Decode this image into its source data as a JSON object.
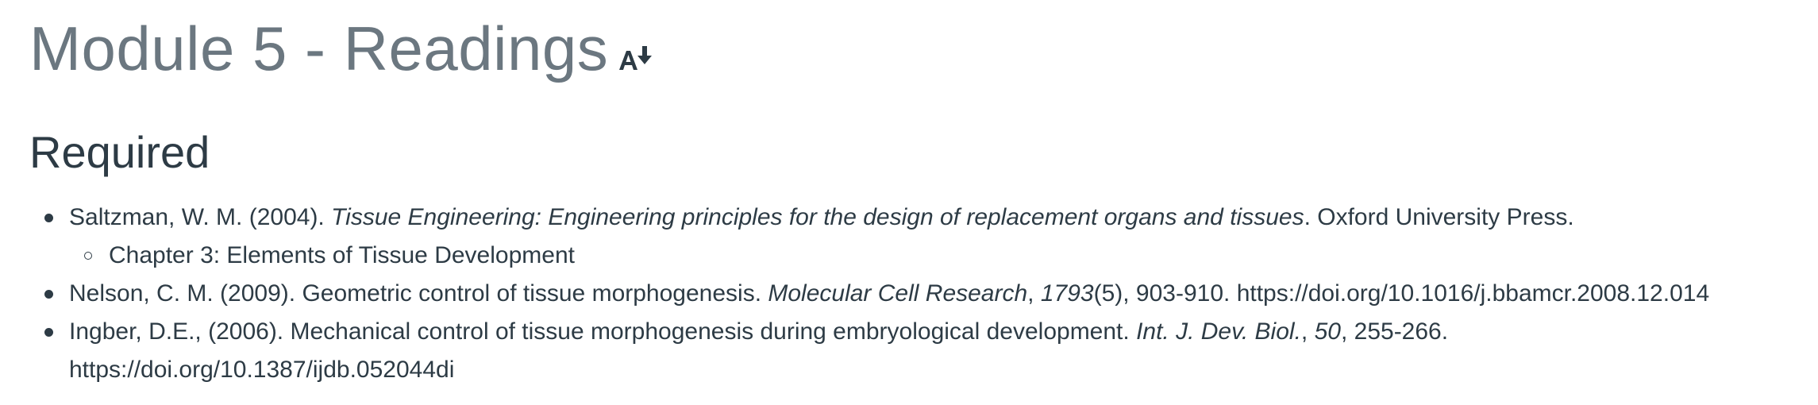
{
  "page": {
    "title": "Module 5 - Readings",
    "immersive_reader_icon": "immersive-reader-icon"
  },
  "required_section": {
    "heading": "Required",
    "references": [
      {
        "authors_year": "Saltzman, W. M. (2004). ",
        "title_italic": "Tissue Engineering: Engineering principles for the design of replacement organs and tissues",
        "tail": ". Oxford University Press.",
        "sub_items": [
          "Chapter 3: Elements of Tissue Development"
        ]
      },
      {
        "authors_year_title": "Nelson, C. M. (2009). Geometric control of tissue morphogenesis. ",
        "journal_italic": "Molecular Cell Research",
        "sep1": ", ",
        "volume_italic": "1793",
        "pages": "(5), 903-910. ",
        "doi": "https://doi.org/10.1016/j.bbamcr.2008.12.014"
      },
      {
        "authors_year_title": "Ingber, D.E., (2006). Mechanical control of tissue morphogenesis during embryological development. ",
        "journal_italic": "Int. J. Dev. Biol.",
        "sep1": ", ",
        "volume_italic": "50",
        "pages": ", 255-266.",
        "doi": "https://doi.org/10.1387/ijdb.052044di"
      }
    ]
  },
  "colors": {
    "title": "#6b7780",
    "text": "#2d3b45",
    "background": "#ffffff"
  }
}
